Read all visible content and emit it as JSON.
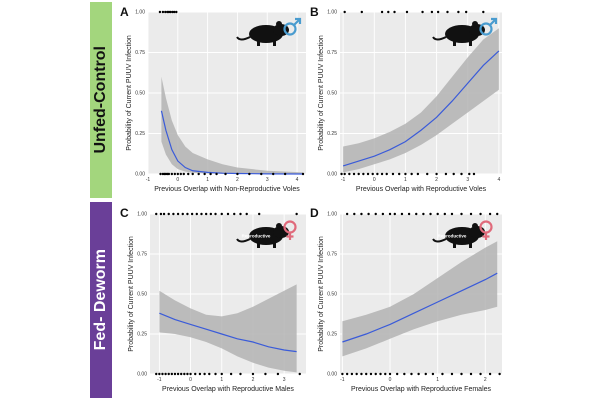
{
  "rows": {
    "top": {
      "label": "Unfed-Control",
      "color": "#a3d67d",
      "text_color": "#111111"
    },
    "bottom": {
      "label": "Fed- Deworm",
      "color": "#6a3f98",
      "text_color": "#ffffff"
    }
  },
  "colors": {
    "panel_bg": "#ebebeb",
    "grid": "#ffffff",
    "line": "#3a5bd9",
    "ribbon": "#b3b3b3",
    "male_symbol": "#4a9ccf",
    "female_symbol": "#e06a7b",
    "point": "#000000"
  },
  "chart_data": [
    {
      "panel": "A",
      "type": "line",
      "sex": "male",
      "annotation": "",
      "xlabel": "Previous Overlap with Non-Reproductive Voles",
      "ylabel": "Probability of Current PUUV Infection",
      "xlim": [
        -1,
        4.3
      ],
      "ylim": [
        0,
        1
      ],
      "xticks": [
        "-1",
        "0",
        "1",
        "2",
        "3",
        "4"
      ],
      "xtick_values": [
        -1,
        0,
        1,
        2,
        3,
        4
      ],
      "yticks": [
        "0.00",
        "0.25",
        "0.50",
        "0.75",
        "1.00"
      ],
      "fit": {
        "x": [
          -0.55,
          -0.4,
          -0.2,
          0,
          0.25,
          0.5,
          1,
          1.5,
          2,
          3,
          4.2
        ],
        "y": [
          0.39,
          0.27,
          0.15,
          0.08,
          0.04,
          0.02,
          0.01,
          0.005,
          0.003,
          0.001,
          0.0
        ]
      },
      "ci_lower": [
        0.2,
        0.12,
        0.06,
        0.03,
        0.015,
        0.008,
        0.003,
        0.001,
        0.0,
        0.0,
        0.0
      ],
      "ci_upper": [
        0.6,
        0.47,
        0.33,
        0.24,
        0.17,
        0.13,
        0.09,
        0.06,
        0.04,
        0.02,
        0.01
      ],
      "points_y1": [
        -0.6,
        -0.5,
        -0.42,
        -0.35,
        -0.3,
        -0.25,
        -0.18,
        -0.12,
        -0.05
      ],
      "points_y0": [
        -0.58,
        -0.5,
        -0.45,
        -0.4,
        -0.35,
        -0.3,
        -0.2,
        -0.1,
        0,
        0.1,
        0.2,
        0.35,
        0.5,
        0.7,
        0.9,
        1.1,
        1.3,
        1.6,
        2.0,
        2.4,
        2.8,
        3.2,
        3.6,
        4.2
      ]
    },
    {
      "panel": "B",
      "type": "line",
      "sex": "male",
      "annotation": "",
      "xlabel": "Previous Overlap with Reproductive Voles",
      "ylabel": "Probability of Current PUUV Infection",
      "xlim": [
        -1.1,
        4.1
      ],
      "ylim": [
        0,
        1
      ],
      "xticks": [
        "-1",
        "0",
        "1",
        "2",
        "3",
        "4"
      ],
      "xtick_values": [
        -1,
        0,
        1,
        2,
        3,
        4
      ],
      "yticks": [
        "0.00",
        "0.25",
        "0.50",
        "0.75",
        "1.00"
      ],
      "fit": {
        "x": [
          -1,
          -0.5,
          0,
          0.5,
          1,
          1.5,
          2,
          2.5,
          3,
          3.5,
          4
        ],
        "y": [
          0.05,
          0.08,
          0.11,
          0.15,
          0.2,
          0.27,
          0.35,
          0.45,
          0.56,
          0.67,
          0.76
        ]
      },
      "ci_lower": [
        0.01,
        0.03,
        0.06,
        0.09,
        0.13,
        0.18,
        0.24,
        0.31,
        0.38,
        0.45,
        0.52
      ],
      "ci_upper": [
        0.17,
        0.19,
        0.22,
        0.26,
        0.31,
        0.38,
        0.48,
        0.6,
        0.72,
        0.83,
        0.9
      ],
      "points_y1": [
        -0.95,
        -0.4,
        0.25,
        0.45,
        0.65,
        1.05,
        1.55,
        1.85,
        2.05,
        2.35,
        2.7,
        2.95,
        3.5
      ],
      "points_y0": [
        -1.05,
        -0.95,
        -0.8,
        -0.65,
        -0.5,
        -0.35,
        -0.2,
        -0.05,
        0.1,
        0.25,
        0.4,
        0.6,
        0.8,
        1.0,
        1.2,
        1.4,
        1.7,
        2.0,
        2.3,
        2.55,
        2.8,
        3.05,
        3.2
      ]
    },
    {
      "panel": "C",
      "type": "line",
      "sex": "female",
      "annotation": "Reproductive",
      "xlabel": "Previous Overlap with Reproductive Males",
      "ylabel": "Probability of Current PUUV Infection",
      "xlim": [
        -1.3,
        3.7
      ],
      "ylim": [
        0,
        1
      ],
      "xticks": [
        "-1",
        "0",
        "1",
        "2",
        "3"
      ],
      "xtick_values": [
        -1,
        0,
        1,
        2,
        3
      ],
      "yticks": [
        "0.00",
        "0.25",
        "0.50",
        "0.75",
        "1.00"
      ],
      "fit": {
        "x": [
          -1,
          -0.5,
          0,
          0.5,
          1,
          1.5,
          2,
          2.5,
          3,
          3.4
        ],
        "y": [
          0.38,
          0.34,
          0.31,
          0.28,
          0.25,
          0.22,
          0.2,
          0.17,
          0.15,
          0.14
        ]
      },
      "ci_lower": [
        0.26,
        0.25,
        0.23,
        0.2,
        0.16,
        0.11,
        0.07,
        0.04,
        0.02,
        0.01
      ],
      "ci_upper": [
        0.52,
        0.46,
        0.41,
        0.37,
        0.36,
        0.38,
        0.42,
        0.47,
        0.52,
        0.56
      ],
      "points_y1": [
        -1.1,
        -0.95,
        -0.85,
        -0.7,
        -0.55,
        -0.4,
        -0.25,
        -0.1,
        0.05,
        0.2,
        0.35,
        0.5,
        0.65,
        0.8,
        1.0,
        1.2,
        1.4,
        1.6,
        1.8,
        2.2,
        3.4
      ],
      "points_y0": [
        -1.1,
        -1.0,
        -0.9,
        -0.8,
        -0.7,
        -0.6,
        -0.5,
        -0.4,
        -0.3,
        -0.2,
        -0.1,
        0.0,
        0.15,
        0.3,
        0.45,
        0.6,
        0.8,
        1.0,
        1.3,
        1.6,
        2.0,
        2.4,
        2.8,
        3.5
      ]
    },
    {
      "panel": "D",
      "type": "line",
      "sex": "female",
      "annotation": "Reproductive",
      "xlabel": "Previous Overlap with Reproductive Females",
      "ylabel": "Probability of Current PUUV Infection",
      "xlim": [
        -1.05,
        2.35
      ],
      "ylim": [
        0,
        1
      ],
      "xticks": [
        "-1",
        "0",
        "1",
        "2"
      ],
      "xtick_values": [
        -1,
        0,
        1,
        2
      ],
      "yticks": [
        "0.00",
        "0.25",
        "0.50",
        "0.75",
        "1.00"
      ],
      "fit": {
        "x": [
          -1,
          -0.5,
          0,
          0.5,
          1,
          1.5,
          2,
          2.25
        ],
        "y": [
          0.2,
          0.25,
          0.31,
          0.38,
          0.45,
          0.52,
          0.59,
          0.63
        ]
      },
      "ci_lower": [
        0.11,
        0.16,
        0.22,
        0.28,
        0.33,
        0.37,
        0.4,
        0.42
      ],
      "ci_upper": [
        0.33,
        0.37,
        0.42,
        0.5,
        0.6,
        0.7,
        0.79,
        0.83
      ],
      "points_y1": [
        -0.9,
        -0.75,
        -0.6,
        -0.45,
        -0.3,
        -0.15,
        0.0,
        0.1,
        0.25,
        0.4,
        0.55,
        0.7,
        0.85,
        1.0,
        1.15,
        1.3,
        1.5,
        1.7,
        1.9,
        2.1,
        2.25
      ],
      "points_y0": [
        -1.0,
        -0.9,
        -0.8,
        -0.7,
        -0.6,
        -0.5,
        -0.4,
        -0.3,
        -0.2,
        -0.1,
        0.0,
        0.15,
        0.3,
        0.45,
        0.6,
        0.75,
        0.9,
        1.1,
        1.3,
        1.5,
        1.7,
        1.9,
        2.1,
        2.3
      ]
    }
  ]
}
